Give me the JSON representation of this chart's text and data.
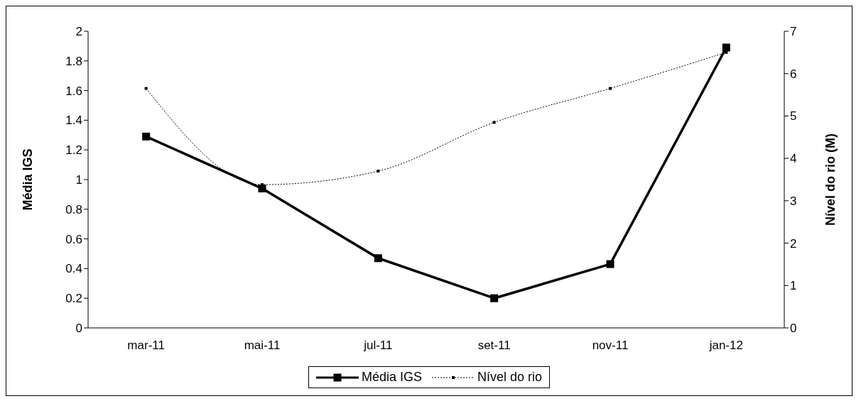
{
  "chart_data": {
    "type": "line",
    "categories": [
      "mar-11",
      "mai-11",
      "jul-11",
      "set-11",
      "nov-11",
      "jan-12"
    ],
    "ylabel": "Média IGS",
    "y2label": "Nível do rio (M)",
    "ylim": [
      0,
      2
    ],
    "yticks": [
      0,
      0.2,
      0.4,
      0.6,
      0.8,
      1,
      1.2,
      1.4,
      1.6,
      1.8,
      2
    ],
    "y2lim": [
      0,
      7
    ],
    "y2ticks": [
      0,
      1,
      2,
      3,
      4,
      5,
      6,
      7
    ],
    "grid": false,
    "legend": "bottom",
    "series": [
      {
        "name": "Média IGS",
        "color": "#000000",
        "values": [
          1.29,
          0.94,
          0.47,
          0.2,
          0.43,
          1.89
        ],
        "marker": "square",
        "line_style": "solid"
      },
      {
        "name": "Nível do rio",
        "color": "#000000",
        "values": [
          5.65,
          3.38,
          3.7,
          4.85,
          5.65,
          6.5
        ],
        "axis": "y2",
        "marker": "square",
        "line_style": "dotted"
      }
    ]
  }
}
